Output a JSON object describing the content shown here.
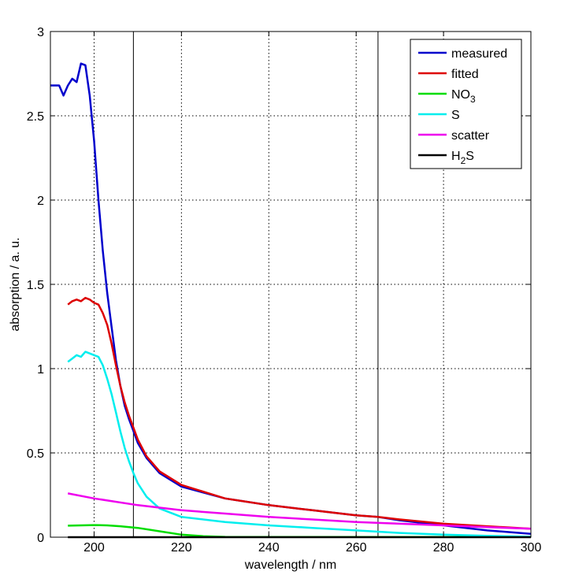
{
  "chart_data": {
    "type": "line",
    "xlabel": "wavelength / nm",
    "ylabel": "absorption / a. u.",
    "xlim": [
      190,
      300
    ],
    "ylim": [
      0,
      3
    ],
    "x_ticks": [
      200,
      220,
      240,
      260,
      280,
      300
    ],
    "x_tick_labels": [
      "200",
      "220",
      "240",
      "260",
      "280",
      "300"
    ],
    "y_ticks": [
      0,
      0.5,
      1,
      1.5,
      2,
      2.5,
      3
    ],
    "y_tick_labels": [
      "0",
      "0.5",
      "1",
      "1.5",
      "2",
      "2.5",
      "3"
    ],
    "grid": "dotted",
    "vertical_lines": [
      209,
      265
    ],
    "legend": {
      "placement": "top-right"
    },
    "series": [
      {
        "name": "measured",
        "subscript": "",
        "name_suffix": "",
        "color": "#0000cc",
        "x": [
          190,
          192,
          193,
          194,
          195,
          196,
          197,
          198,
          199,
          200,
          201,
          202,
          203,
          204,
          205,
          206,
          207,
          208,
          209,
          210,
          212,
          215,
          220,
          230,
          240,
          250,
          260,
          265,
          270,
          280,
          290,
          300
        ],
        "y": [
          2.68,
          2.68,
          2.62,
          2.68,
          2.72,
          2.7,
          2.81,
          2.8,
          2.62,
          2.35,
          2.0,
          1.7,
          1.45,
          1.25,
          1.05,
          0.9,
          0.78,
          0.7,
          0.63,
          0.56,
          0.47,
          0.38,
          0.3,
          0.23,
          0.19,
          0.16,
          0.13,
          0.12,
          0.1,
          0.07,
          0.04,
          0.02
        ]
      },
      {
        "name": "fitted",
        "subscript": "",
        "name_suffix": "",
        "color": "#dd0000",
        "x": [
          194,
          195,
          196,
          197,
          198,
          199,
          200,
          201,
          202,
          203,
          204,
          205,
          206,
          207,
          208,
          209,
          210,
          212,
          215,
          220,
          230,
          240,
          250,
          260,
          265,
          270,
          280,
          290,
          300
        ],
        "y": [
          1.38,
          1.4,
          1.41,
          1.4,
          1.42,
          1.41,
          1.39,
          1.38,
          1.33,
          1.26,
          1.15,
          1.02,
          0.9,
          0.8,
          0.72,
          0.65,
          0.58,
          0.48,
          0.39,
          0.31,
          0.23,
          0.19,
          0.16,
          0.13,
          0.12,
          0.105,
          0.08,
          0.065,
          0.05
        ]
      },
      {
        "name": "NO",
        "subscript": "3",
        "name_suffix": "",
        "color": "#00dd00",
        "x": [
          194,
          197,
          200,
          203,
          206,
          210,
          215,
          220,
          225,
          230,
          240,
          250,
          260,
          270,
          280,
          300
        ],
        "y": [
          0.068,
          0.07,
          0.072,
          0.07,
          0.065,
          0.055,
          0.035,
          0.015,
          0.006,
          0.002,
          0.001,
          0.001,
          0.001,
          0.001,
          0.001,
          0.001
        ]
      },
      {
        "name": "S",
        "subscript": "",
        "name_suffix": "",
        "color": "#00eeee",
        "x": [
          194,
          195,
          196,
          197,
          198,
          199,
          200,
          201,
          202,
          203,
          204,
          205,
          206,
          207,
          208,
          209,
          210,
          212,
          215,
          220,
          230,
          240,
          250,
          260,
          270,
          280,
          290,
          300
        ],
        "y": [
          1.04,
          1.06,
          1.08,
          1.07,
          1.1,
          1.09,
          1.08,
          1.07,
          1.02,
          0.94,
          0.85,
          0.74,
          0.63,
          0.53,
          0.45,
          0.38,
          0.32,
          0.24,
          0.17,
          0.12,
          0.09,
          0.07,
          0.055,
          0.04,
          0.025,
          0.015,
          0.008,
          0.003
        ]
      },
      {
        "name": "scatter",
        "subscript": "",
        "name_suffix": "",
        "color": "#ee00ee",
        "x": [
          194,
          200,
          210,
          220,
          230,
          240,
          250,
          260,
          270,
          280,
          290,
          300
        ],
        "y": [
          0.26,
          0.23,
          0.19,
          0.16,
          0.14,
          0.12,
          0.105,
          0.09,
          0.08,
          0.07,
          0.06,
          0.05
        ]
      },
      {
        "name": "H",
        "subscript": "2",
        "name_suffix": "S",
        "color": "#000000",
        "x": [
          194,
          300
        ],
        "y": [
          0.0,
          0.0
        ]
      }
    ]
  }
}
